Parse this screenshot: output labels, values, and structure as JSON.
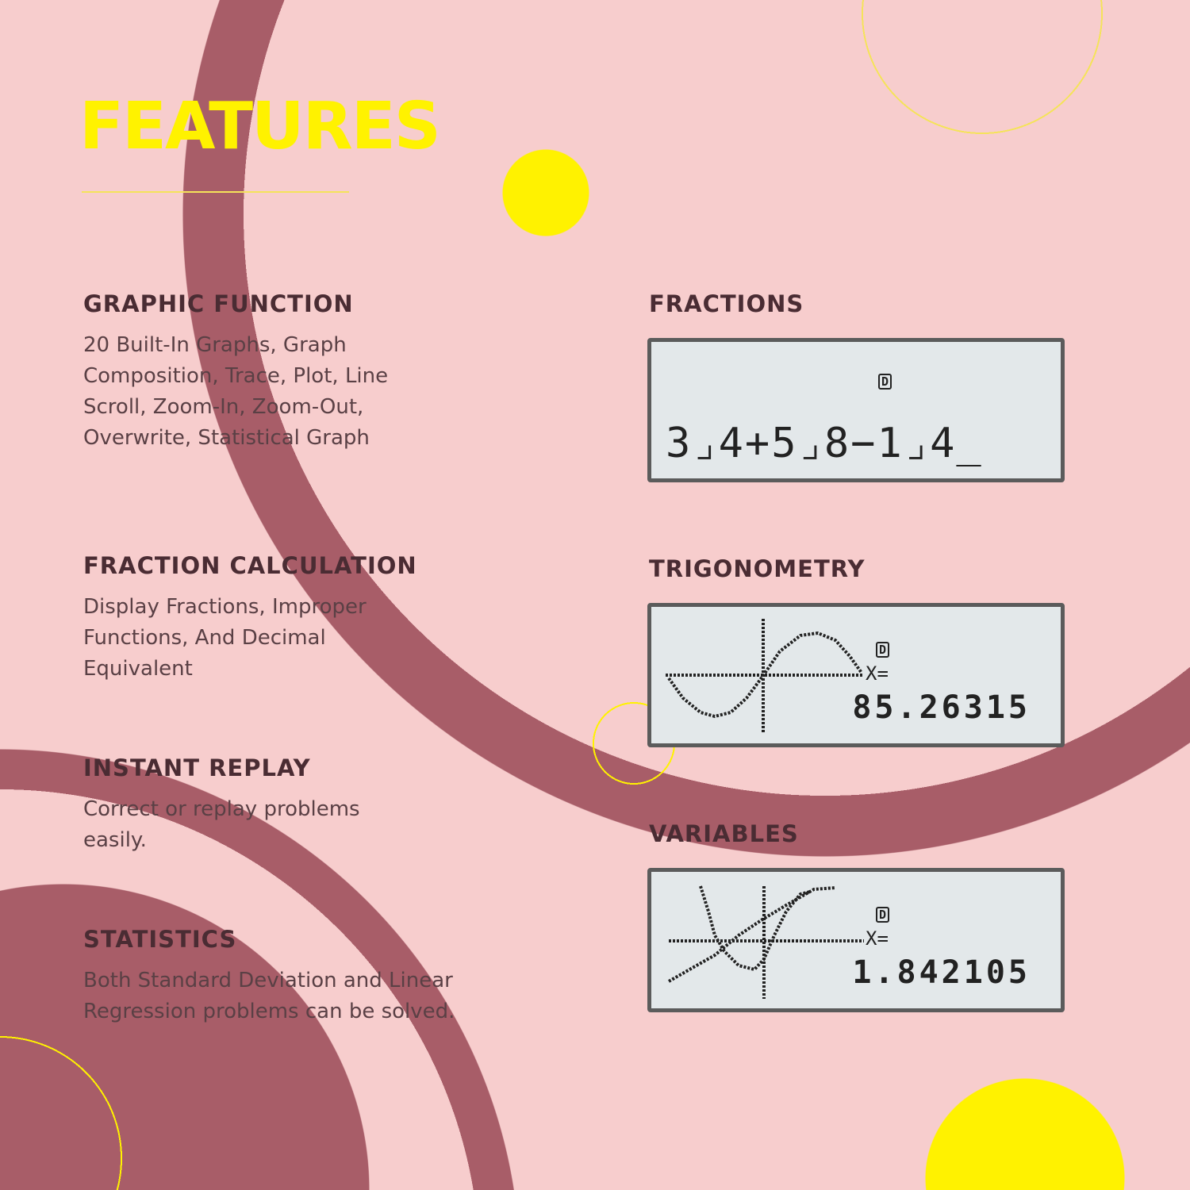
{
  "title": "FEATURES",
  "colors": {
    "background": "#f7cdcd",
    "ring": "#a85d68",
    "accent_yellow": "#fff200",
    "text": "#4a2c33",
    "lcd_bg": "#e3e8ea",
    "lcd_border": "#5b5b5b"
  },
  "features": [
    {
      "heading": "GRAPHIC FUNCTION",
      "text": "20 Built-In Graphs, Graph Composition, Trace, Plot, Line Scroll, Zoom-In, Zoom-Out, Overwrite, Statistical Graph"
    },
    {
      "heading": "FRACTION CALCULATION",
      "text": "Display Fractions, Improper Functions, And Decimal Equivalent"
    },
    {
      "heading": "INSTANT REPLAY",
      "text": "Correct or replay problems easily."
    },
    {
      "heading": "STATISTICS",
      "text": "Both Standard Deviation and Linear Regression problems can be solved."
    }
  ],
  "screens": [
    {
      "heading": "FRACTIONS",
      "indicator": "D",
      "expression": "3⌟4+5⌟8−1⌟4_"
    },
    {
      "heading": "TRIGONOMETRY",
      "indicator": "D",
      "label": "X=",
      "value": "85.26315"
    },
    {
      "heading": "VARIABLES",
      "indicator": "D",
      "label": "X=",
      "value": "1.842105"
    }
  ]
}
